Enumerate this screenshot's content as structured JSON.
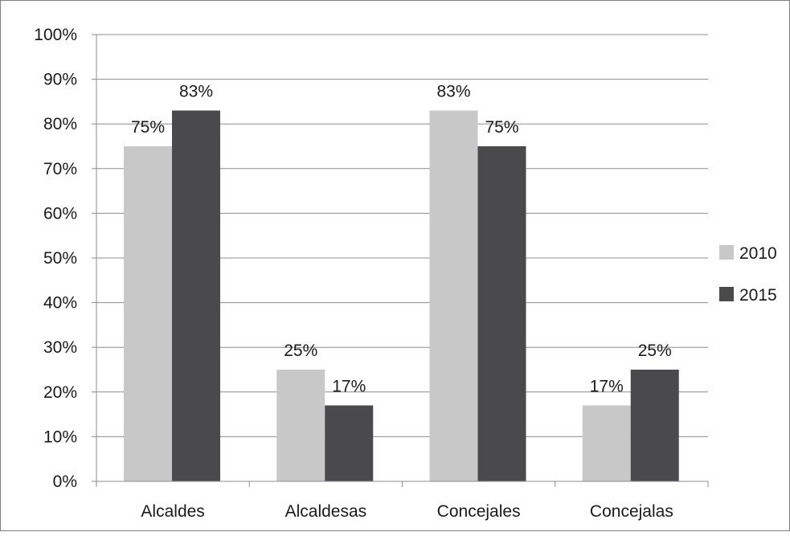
{
  "chart_data": {
    "type": "bar",
    "title": "",
    "xlabel": "",
    "ylabel": "",
    "categories": [
      "Alcaldes",
      "Alcaldesas",
      "Concejales",
      "Concejalas"
    ],
    "series": [
      {
        "name": "2010",
        "values": [
          75,
          25,
          83,
          17
        ],
        "labels": [
          "75%",
          "25%",
          "83%",
          "17%"
        ],
        "color": "#c8c8c8"
      },
      {
        "name": "2015",
        "values": [
          83,
          17,
          75,
          25
        ],
        "labels": [
          "83%",
          "17%",
          "75%",
          "25%"
        ],
        "color": "#4a4a4c"
      }
    ],
    "ylim": [
      0,
      100
    ],
    "yticks": [
      0,
      10,
      20,
      30,
      40,
      50,
      60,
      70,
      80,
      90,
      100
    ],
    "ytick_labels": [
      "0%",
      "10%",
      "20%",
      "30%",
      "40%",
      "50%",
      "60%",
      "70%",
      "80%",
      "90%",
      "100%"
    ],
    "grid": true,
    "legend_position": "right"
  }
}
